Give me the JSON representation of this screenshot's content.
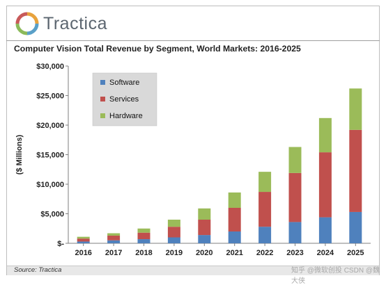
{
  "header": {
    "logo_text": "Tractica",
    "chart_title": "Computer Vision Total Revenue by Segment, World Markets: 2016-2025"
  },
  "footer": {
    "source": "Source: Tractica",
    "watermark": "知乎 @微软创投 CSDN @魏大侠"
  },
  "colors": {
    "software": "#4f81bd",
    "services": "#c0504d",
    "hardware": "#9bbb59",
    "legend_bg": "#d9d9d9"
  },
  "chart_data": {
    "type": "bar",
    "stacked": true,
    "title": "Computer Vision Total Revenue by Segment, World Markets: 2016-2025",
    "xlabel": "",
    "ylabel": "($ Millions)",
    "ylim": [
      0,
      30000
    ],
    "ytick_labels": [
      "$-",
      "$5,000",
      "$10,000",
      "$15,000",
      "$20,000",
      "$25,000",
      "$30,000"
    ],
    "yticks": [
      0,
      5000,
      10000,
      15000,
      20000,
      25000,
      30000
    ],
    "categories": [
      "2016",
      "2017",
      "2018",
      "2019",
      "2020",
      "2021",
      "2022",
      "2023",
      "2024",
      "2025"
    ],
    "series": [
      {
        "name": "Software",
        "color": "#4f81bd",
        "values": [
          300,
          500,
          700,
          1000,
          1400,
          2000,
          2800,
          3600,
          4400,
          5300
        ]
      },
      {
        "name": "Services",
        "color": "#c0504d",
        "values": [
          500,
          800,
          1100,
          1800,
          2600,
          4000,
          5900,
          8300,
          11000,
          13900
        ]
      },
      {
        "name": "Hardware",
        "color": "#9bbb59",
        "values": [
          300,
          400,
          700,
          1200,
          1900,
          2600,
          3400,
          4400,
          5800,
          7000
        ]
      }
    ],
    "legend_position": "top-left",
    "grid": false
  }
}
